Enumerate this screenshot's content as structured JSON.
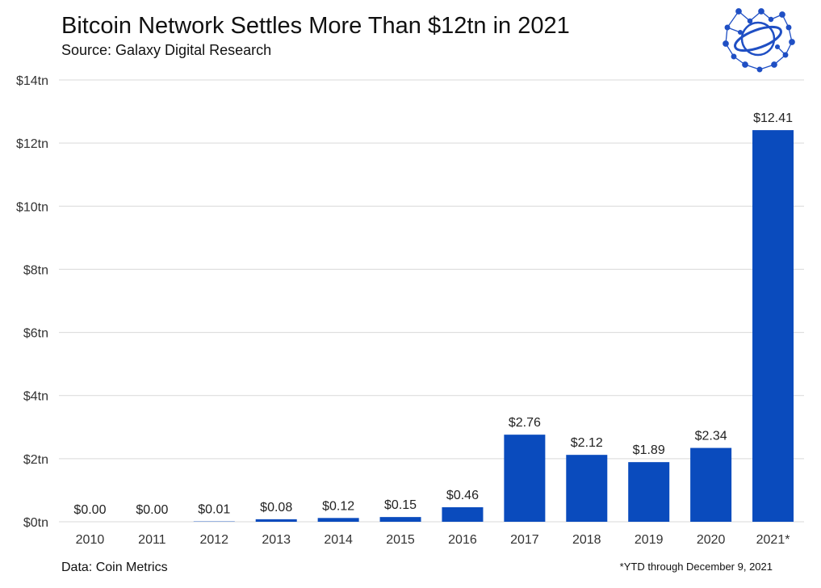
{
  "header": {
    "title": "Bitcoin Network Settles More Than $12tn in 2021",
    "subtitle": "Source: Galaxy Digital Research"
  },
  "footer": {
    "data_source": "Data: Coin Metrics",
    "note": "*YTD through December 9, 2021"
  },
  "logo": {
    "icon": "network-globe-icon",
    "color": "#1f4fc4"
  },
  "chart_data": {
    "type": "bar",
    "title": "Bitcoin Network Settles More Than $12tn in 2021",
    "subtitle": "Source: Galaxy Digital Research",
    "xlabel": "",
    "ylabel": "",
    "categories": [
      "2010",
      "2011",
      "2012",
      "2013",
      "2014",
      "2015",
      "2016",
      "2017",
      "2018",
      "2019",
      "2020",
      "2021*"
    ],
    "values": [
      0.0,
      0.0,
      0.01,
      0.08,
      0.12,
      0.15,
      0.46,
      2.76,
      2.12,
      1.89,
      2.34,
      12.41
    ],
    "data_labels": [
      "$0.00",
      "$0.00",
      "$0.01",
      "$0.08",
      "$0.12",
      "$0.15",
      "$0.46",
      "$2.76",
      "$2.12",
      "$1.89",
      "$2.34",
      "$12.41"
    ],
    "ylim": [
      0,
      14
    ],
    "yticks": [
      0,
      2,
      4,
      6,
      8,
      10,
      12,
      14
    ],
    "ytick_labels": [
      "$0tn",
      "$2tn",
      "$4tn",
      "$6tn",
      "$8tn",
      "$10tn",
      "$12tn",
      "$14tn"
    ],
    "grid": true,
    "bar_color": "#0a4bbd",
    "grid_color": "#d9d9d9"
  }
}
